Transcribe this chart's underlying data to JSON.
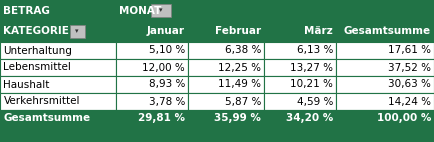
{
  "header1_text": "BETRAG",
  "header1_sub": "MONAT",
  "col_headers": [
    "KATEGORIE",
    "Januar",
    "Februar",
    "März",
    "Gesamtsumme"
  ],
  "rows": [
    [
      "Unterhaltung",
      "5,10 %",
      "6,38 %",
      "6,13 %",
      "17,61 %"
    ],
    [
      "Lebensmittel",
      "12,00 %",
      "12,25 %",
      "13,27 %",
      "37,52 %"
    ],
    [
      "Haushalt",
      "8,93 %",
      "11,49 %",
      "10,21 %",
      "30,63 %"
    ],
    [
      "Verkehrsmittel",
      "3,78 %",
      "5,87 %",
      "4,59 %",
      "14,24 %"
    ]
  ],
  "total_row": [
    "Gesamtsumme",
    "29,81 %",
    "35,99 %",
    "34,20 %",
    "100,00 %"
  ],
  "green_dark": "#217346",
  "row_bg": "#FFFFFF",
  "border_color": "#217346",
  "header_text_color": "#FFFFFF",
  "row_text_color": "#000000",
  "total_text_color": "#FFFFFF",
  "dropdown_bg": "#C0C0C0",
  "dropdown_border": "#808080",
  "figsize": [
    4.34,
    1.42
  ],
  "dpi": 100
}
